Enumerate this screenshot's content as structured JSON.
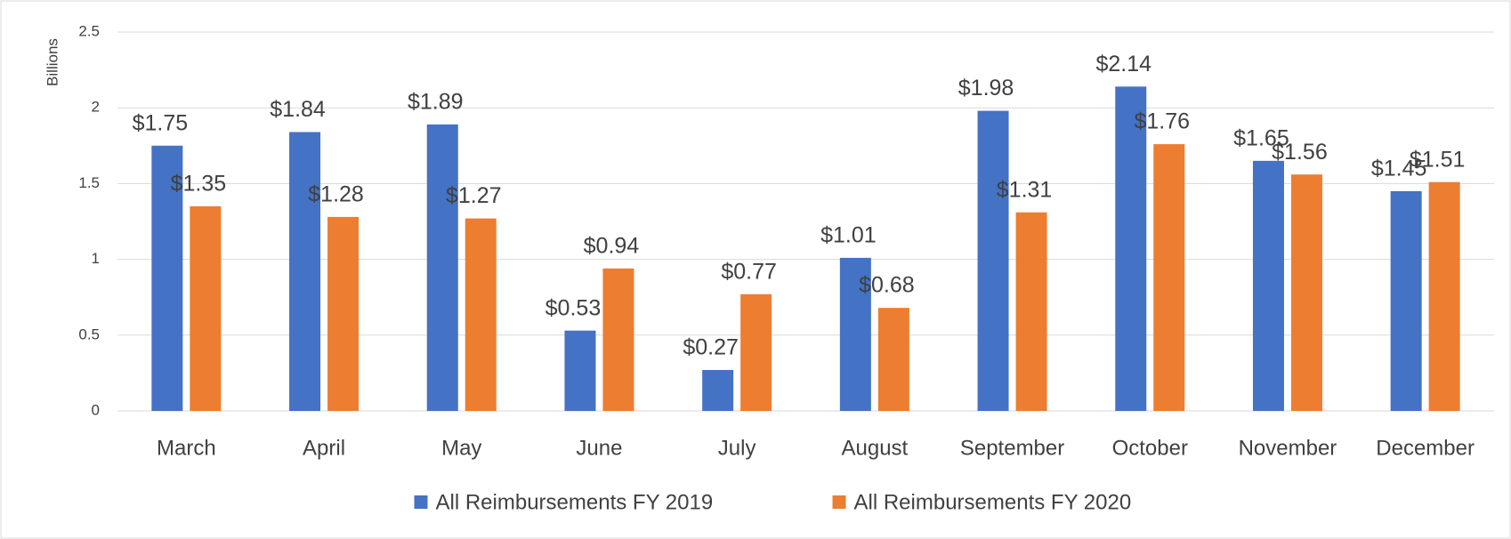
{
  "chart_data": {
    "type": "bar",
    "y_axis_label": "Billions",
    "categories": [
      "March",
      "April",
      "May",
      "June",
      "July",
      "August",
      "September",
      "October",
      "November",
      "December"
    ],
    "series": [
      {
        "name": "All Reimbursements FY 2019",
        "color": "#4472c4",
        "values": [
          1.75,
          1.84,
          1.89,
          0.53,
          0.27,
          1.01,
          1.98,
          2.14,
          1.65,
          1.45
        ],
        "value_labels": [
          "$1.75",
          "$1.84",
          "$1.89",
          "$0.53",
          "$0.27",
          "$1.01",
          "$1.98",
          "$2.14",
          "$1.65",
          "$1.45"
        ]
      },
      {
        "name": "All Reimbursements FY 2020",
        "color": "#ed7d31",
        "values": [
          1.35,
          1.28,
          1.27,
          0.94,
          0.77,
          0.68,
          1.31,
          1.76,
          1.56,
          1.51
        ],
        "value_labels": [
          "$1.35",
          "$1.28",
          "$1.27",
          "$0.94",
          "$0.77",
          "$0.68",
          "$1.31",
          "$1.76",
          "$1.56",
          "$1.51"
        ]
      }
    ],
    "ylim": [
      0,
      2.5
    ],
    "yticks": [
      0,
      0.5,
      1,
      1.5,
      2,
      2.5
    ],
    "grid": true,
    "legend": "bottom"
  }
}
